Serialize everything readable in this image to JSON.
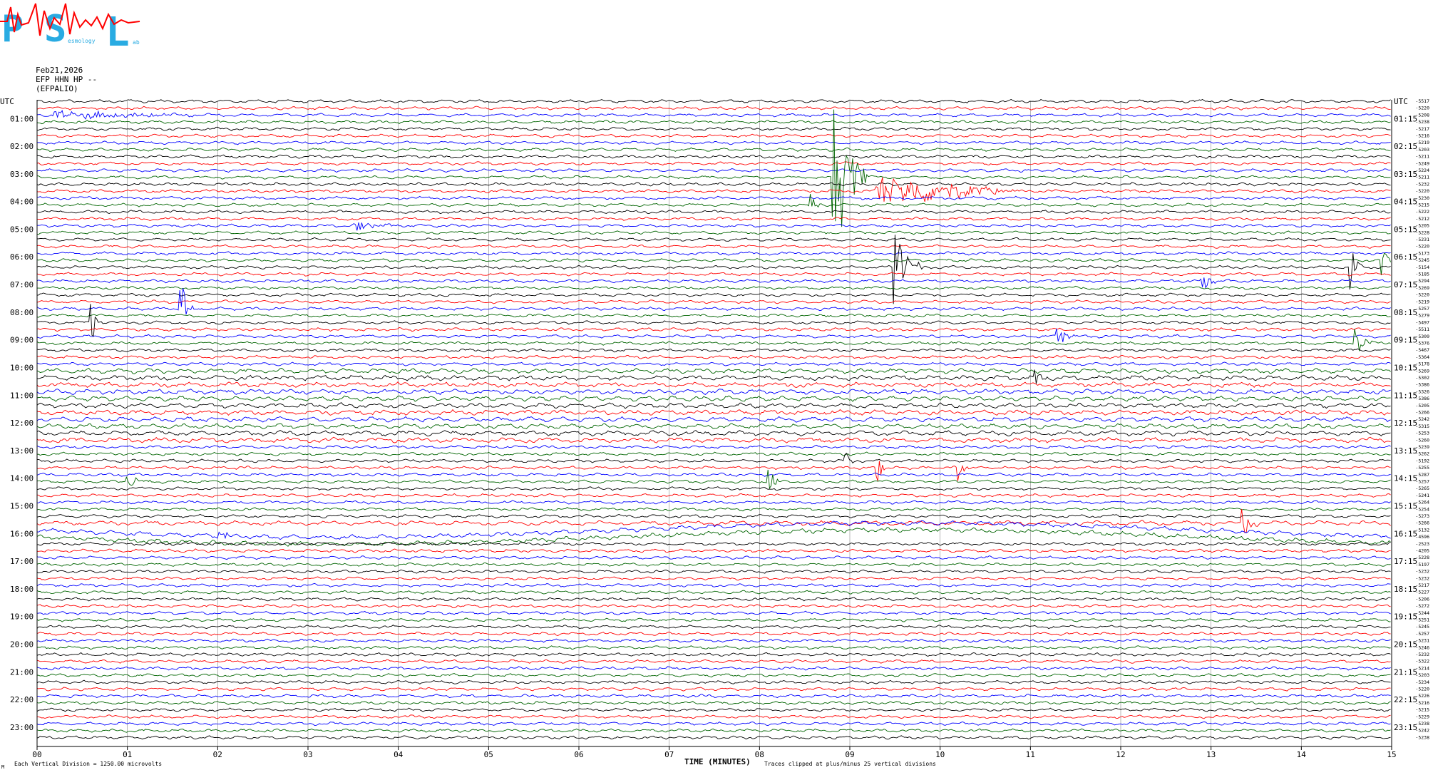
{
  "logo": {
    "letters": [
      "P",
      "S",
      "L"
    ],
    "small_words": [
      "esmology",
      "ab"
    ],
    "colors": {
      "letters": "#29abe2",
      "wave": "#ff0000"
    }
  },
  "header": {
    "date": "Feb21,2026",
    "channel": "EFP HHN HP --",
    "station": "(EFPALIO)"
  },
  "axes": {
    "left_title": "UTC",
    "right_title": "UTC",
    "left_hours": [
      "01:00",
      "02:00",
      "03:00",
      "04:00",
      "05:00",
      "06:00",
      "07:00",
      "08:00",
      "09:00",
      "10:00",
      "11:00",
      "12:00",
      "13:00",
      "14:00",
      "15:00",
      "16:00",
      "17:00",
      "18:00",
      "19:00",
      "20:00",
      "21:00",
      "22:00",
      "23:00"
    ],
    "right_hours": [
      "01:15",
      "02:15",
      "03:15",
      "04:15",
      "05:15",
      "06:15",
      "07:15",
      "08:15",
      "09:15",
      "10:15",
      "11:15",
      "12:15",
      "13:15",
      "14:15",
      "15:15",
      "16:15",
      "17:15",
      "18:15",
      "19:15",
      "20:15",
      "21:15",
      "22:15",
      "23:15"
    ],
    "minute_ticks": [
      "00",
      "01",
      "02",
      "03",
      "04",
      "05",
      "06",
      "07",
      "08",
      "09",
      "10",
      "11",
      "12",
      "13",
      "14",
      "15"
    ],
    "xlabel": "TIME (MINUTES)"
  },
  "footer": {
    "left_note": "Each Vertical Division = 1250.00 microvolts",
    "right_note": "Traces clipped at plus/minus 25 vertical divisions",
    "corner_mark": "M"
  },
  "right_values": [
    "-5517",
    "-5220",
    "-5208",
    "-5238",
    "-5217",
    "-5216",
    "-5219",
    "-5203",
    "-5211",
    "-5249",
    "-5224",
    "-5211",
    "-5232",
    "-5220",
    "-5230",
    "-5215",
    "-5222",
    "-5212",
    "-5205",
    "-5228",
    "-5231",
    "-5220",
    "-5173",
    "-5245",
    "-5154",
    "-5185",
    "-5294",
    "-5269",
    "-5220",
    "-5219",
    "-5257",
    "-5279",
    "-5497",
    "-5511",
    "-5309",
    "-5376",
    "-5467",
    "-5364",
    "-5178",
    "-5269",
    "-5302",
    "-5386",
    "-5326",
    "-5386",
    "-5205",
    "-5266",
    "-5242",
    "-5315",
    "-5253",
    "-5260",
    "-5239",
    "-5262",
    "-5192",
    "-5255",
    "-5287",
    "-5257",
    "-5265",
    "-5241",
    "-5264",
    "-5254",
    "-5273",
    "-5266",
    "-5132",
    "-4596",
    "-2523",
    "-4205",
    "-5228",
    "-5197",
    "-5232",
    "-5232",
    "-5217",
    "-5227",
    "-5206",
    "-5272",
    "-5244",
    "-5251",
    "-5245",
    "-5257",
    "-5231",
    "-5246",
    "-5232",
    "-5322",
    "-5214",
    "-5203",
    "-5234",
    "-5220",
    "-5226",
    "-5216",
    "-5215",
    "-5229",
    "-5238",
    "-5242",
    "-5238"
  ],
  "trace_colors": [
    "#000000",
    "#ff0000",
    "#0000ff",
    "#006400"
  ],
  "chart_data": {
    "type": "line",
    "title": "",
    "xlabel": "TIME (MINUTES)",
    "ylabel": "UTC",
    "xlim": [
      0,
      15
    ],
    "rows": 93,
    "row_minutes": 15,
    "grid": true,
    "events": [
      {
        "row": 2,
        "minute": 0.2,
        "amp": 6,
        "dur": 1.8,
        "kind": "noise"
      },
      {
        "row": 18,
        "minute": 3.5,
        "amp": 10,
        "dur": 0.6,
        "kind": "quake"
      },
      {
        "row": 15,
        "minute": 8.55,
        "amp": 18,
        "dur": 0.15,
        "kind": "spike"
      },
      {
        "row": 11,
        "minute": 8.8,
        "amp": 170,
        "dur": 0.4,
        "kind": "big"
      },
      {
        "row": 13,
        "minute": 9.3,
        "amp": 22,
        "dur": 1.6,
        "kind": "coda"
      },
      {
        "row": 24,
        "minute": 9.5,
        "amp": 60,
        "dur": 0.3,
        "kind": "big2"
      },
      {
        "row": 24,
        "minute": 14.55,
        "amp": 28,
        "dur": 0.2,
        "kind": "spike"
      },
      {
        "row": 23,
        "minute": 14.9,
        "amp": 20,
        "dur": 0.15,
        "kind": "spike"
      },
      {
        "row": 26,
        "minute": 12.9,
        "amp": 18,
        "dur": 0.2,
        "kind": "spike"
      },
      {
        "row": 32,
        "minute": 0.6,
        "amp": 32,
        "dur": 0.15,
        "kind": "spike"
      },
      {
        "row": 30,
        "minute": 1.6,
        "amp": 40,
        "dur": 0.15,
        "kind": "spike"
      },
      {
        "row": 34,
        "minute": 11.3,
        "amp": 22,
        "dur": 0.2,
        "kind": "spike"
      },
      {
        "row": 35,
        "minute": 14.6,
        "amp": 26,
        "dur": 0.2,
        "kind": "spike"
      },
      {
        "row": 40,
        "minute": 11.05,
        "amp": 16,
        "dur": 0.15,
        "kind": "spike"
      },
      {
        "row": 55,
        "minute": 8.1,
        "amp": 26,
        "dur": 0.15,
        "kind": "spike"
      },
      {
        "row": 53,
        "minute": 9.3,
        "amp": 22,
        "dur": 0.15,
        "kind": "spike"
      },
      {
        "row": 53,
        "minute": 10.2,
        "amp": 20,
        "dur": 0.15,
        "kind": "spike"
      },
      {
        "row": 52,
        "minute": 8.95,
        "amp": 14,
        "dur": 0.15,
        "kind": "spike"
      },
      {
        "row": 61,
        "minute": 13.35,
        "amp": 20,
        "dur": 0.2,
        "kind": "spike"
      },
      {
        "row": 55,
        "minute": 1.0,
        "amp": 8,
        "dur": 0.4,
        "kind": "quake"
      },
      {
        "row": 62,
        "minute": 2.0,
        "amp": 18,
        "dur": 0.2,
        "kind": "spike"
      }
    ]
  }
}
